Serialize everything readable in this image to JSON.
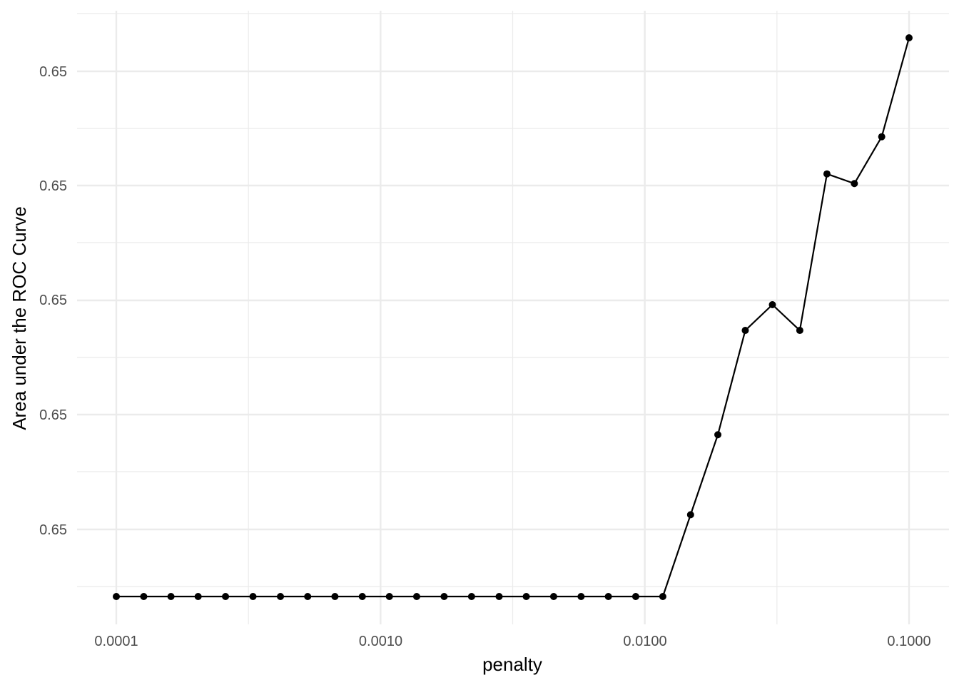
{
  "chart_data": {
    "type": "line",
    "title": "",
    "xlabel": "penalty",
    "ylabel": "Area under the ROC Curve",
    "x_scale": "log10",
    "xlim": [
      0.0001,
      0.1
    ],
    "x_ticks": [
      0.0001,
      0.001,
      0.01,
      0.1
    ],
    "x_tick_labels": [
      "0.0001",
      "0.0010",
      "0.0100",
      "0.1000"
    ],
    "y_tick_labels": [
      "0.65",
      "0.65",
      "0.65",
      "0.65",
      "0.65"
    ],
    "grid": true,
    "legend": "none",
    "colors": {
      "line": "#000000",
      "point": "#000000",
      "grid": "#ebebeb",
      "background": "#ffffff"
    },
    "series": [
      {
        "x": [
          0.0001,
          0.000127,
          0.000161,
          0.000204,
          0.000259,
          0.000329,
          0.000418,
          0.00053,
          0.000672,
          0.000853,
          0.00108,
          0.00137,
          0.00174,
          0.00221,
          0.00281,
          0.00356,
          0.00452,
          0.00574,
          0.00728,
          0.00924,
          0.0117,
          0.0149,
          0.0189,
          0.024,
          0.0304,
          0.0386,
          0.0489,
          0.0621,
          0.0788,
          0.1
        ],
        "y": [
          0.0,
          0.0,
          0.0,
          0.0,
          0.0,
          0.0,
          0.0,
          0.0,
          0.0,
          0.0,
          0.0,
          0.0,
          0.0,
          0.0,
          0.0,
          0.0,
          0.0,
          0.0,
          0.0,
          0.0,
          0.0,
          0.1431,
          0.2831,
          0.4656,
          0.5106,
          0.4656,
          0.7394,
          0.7225,
          0.8044,
          0.9775
        ]
      }
    ]
  }
}
